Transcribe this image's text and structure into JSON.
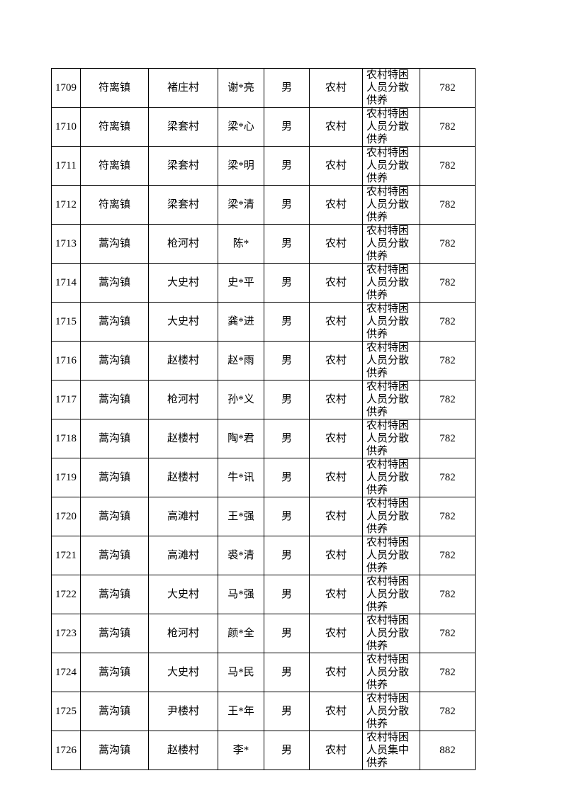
{
  "table": {
    "rows": [
      [
        1709,
        "符离镇",
        "褚庄村",
        "谢*亮",
        "男",
        "农村",
        "农村特困人员分散供养",
        782
      ],
      [
        1710,
        "符离镇",
        "梁套村",
        "梁*心",
        "男",
        "农村",
        "农村特困人员分散供养",
        782
      ],
      [
        1711,
        "符离镇",
        "梁套村",
        "梁*明",
        "男",
        "农村",
        "农村特困人员分散供养",
        782
      ],
      [
        1712,
        "符离镇",
        "梁套村",
        "梁*清",
        "男",
        "农村",
        "农村特困人员分散供养",
        782
      ],
      [
        1713,
        "蒿沟镇",
        "枪河村",
        "陈*",
        "男",
        "农村",
        "农村特困人员分散供养",
        782
      ],
      [
        1714,
        "蒿沟镇",
        "大史村",
        "史*平",
        "男",
        "农村",
        "农村特困人员分散供养",
        782
      ],
      [
        1715,
        "蒿沟镇",
        "大史村",
        "龚*进",
        "男",
        "农村",
        "农村特困人员分散供养",
        782
      ],
      [
        1716,
        "蒿沟镇",
        "赵楼村",
        "赵*雨",
        "男",
        "农村",
        "农村特困人员分散供养",
        782
      ],
      [
        1717,
        "蒿沟镇",
        "枪河村",
        "孙*义",
        "男",
        "农村",
        "农村特困人员分散供养",
        782
      ],
      [
        1718,
        "蒿沟镇",
        "赵楼村",
        "陶*君",
        "男",
        "农村",
        "农村特困人员分散供养",
        782
      ],
      [
        1719,
        "蒿沟镇",
        "赵楼村",
        "牛*讯",
        "男",
        "农村",
        "农村特困人员分散供养",
        782
      ],
      [
        1720,
        "蒿沟镇",
        "高滩村",
        "王*强",
        "男",
        "农村",
        "农村特困人员分散供养",
        782
      ],
      [
        1721,
        "蒿沟镇",
        "高滩村",
        "裘*清",
        "男",
        "农村",
        "农村特困人员分散供养",
        782
      ],
      [
        1722,
        "蒿沟镇",
        "大史村",
        "马*强",
        "男",
        "农村",
        "农村特困人员分散供养",
        782
      ],
      [
        1723,
        "蒿沟镇",
        "枪河村",
        "颜*全",
        "男",
        "农村",
        "农村特困人员分散供养",
        782
      ],
      [
        1724,
        "蒿沟镇",
        "大史村",
        "马*民",
        "男",
        "农村",
        "农村特困人员分散供养",
        782
      ],
      [
        1725,
        "蒿沟镇",
        "尹楼村",
        "王*年",
        "男",
        "农村",
        "农村特困人员分散供养",
        782
      ],
      [
        1726,
        "蒿沟镇",
        "赵楼村",
        "李*",
        "男",
        "农村",
        "农村特困人员集中供养",
        882
      ]
    ]
  }
}
